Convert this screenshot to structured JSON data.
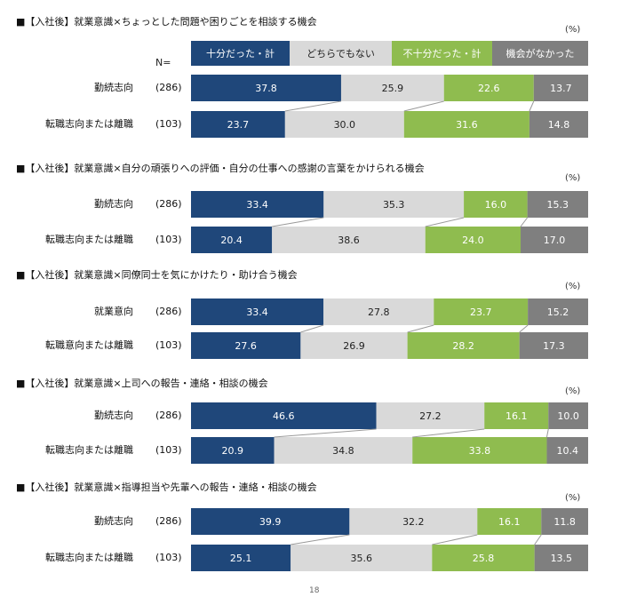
{
  "percent_unit": "(%)",
  "n_header": "N=",
  "page_number": "18",
  "legend": [
    {
      "label": "十分だった・計",
      "color": "#1f477a",
      "text_color": "#ffffff"
    },
    {
      "label": "どちらでもない",
      "color": "#d9d9d9",
      "text_color": "#222222"
    },
    {
      "label": "不十分だった・計",
      "color": "#8fbc4f",
      "text_color": "#ffffff"
    },
    {
      "label": "機会がなかった",
      "color": "#7f7f7f",
      "text_color": "#ffffff"
    }
  ],
  "chart_data": [
    {
      "type": "bar",
      "stacked": true,
      "orientation": "horizontal",
      "title": "■【入社後】就業意識×ちょっとした問題や困りごとを相談する機会",
      "categories": [
        "勤続志向",
        "転職志向または離職"
      ],
      "n": [
        "(286)",
        "(103)"
      ],
      "series": [
        {
          "name": "十分だった・計",
          "values": [
            37.8,
            23.7
          ]
        },
        {
          "name": "どちらでもない",
          "values": [
            25.9,
            30.0
          ]
        },
        {
          "name": "不十分だった・計",
          "values": [
            22.6,
            31.6
          ]
        },
        {
          "name": "機会がなかった",
          "values": [
            13.7,
            14.8
          ]
        }
      ],
      "value_labels": [
        [
          "37.8",
          "25.9",
          "22.6",
          "13.7"
        ],
        [
          "23.7",
          "30.0",
          "31.6",
          "14.8"
        ]
      ]
    },
    {
      "type": "bar",
      "stacked": true,
      "orientation": "horizontal",
      "title": "■【入社後】就業意識×自分の頑張りへの評価・自分の仕事への感謝の言葉をかけられる機会",
      "categories": [
        "勤続志向",
        "転職志向または離職"
      ],
      "n": [
        "(286)",
        "(103)"
      ],
      "series": [
        {
          "name": "十分だった・計",
          "values": [
            33.4,
            20.4
          ]
        },
        {
          "name": "どちらでもない",
          "values": [
            35.3,
            38.6
          ]
        },
        {
          "name": "不十分だった・計",
          "values": [
            16.0,
            24.0
          ]
        },
        {
          "name": "機会がなかった",
          "values": [
            15.3,
            17.0
          ]
        }
      ],
      "value_labels": [
        [
          "33.4",
          "35.3",
          "16.0",
          "15.3"
        ],
        [
          "20.4",
          "38.6",
          "24.0",
          "17.0"
        ]
      ]
    },
    {
      "type": "bar",
      "stacked": true,
      "orientation": "horizontal",
      "title": "■【入社後】就業意識×同僚同士を気にかけたり・助け合う機会",
      "categories": [
        "就業意向",
        "転職意向または離職"
      ],
      "n": [
        "(286)",
        "(103)"
      ],
      "series": [
        {
          "name": "十分だった・計",
          "values": [
            33.4,
            27.6
          ]
        },
        {
          "name": "どちらでもない",
          "values": [
            27.8,
            26.9
          ]
        },
        {
          "name": "不十分だった・計",
          "values": [
            23.7,
            28.2
          ]
        },
        {
          "name": "機会がなかった",
          "values": [
            15.2,
            17.3
          ]
        }
      ],
      "value_labels": [
        [
          "33.4",
          "27.8",
          "23.7",
          "15.2"
        ],
        [
          "27.6",
          "26.9",
          "28.2",
          "17.3"
        ]
      ]
    },
    {
      "type": "bar",
      "stacked": true,
      "orientation": "horizontal",
      "title": "■【入社後】就業意識×上司への報告・連絡・相談の機会",
      "categories": [
        "勤続志向",
        "転職志向または離職"
      ],
      "n": [
        "(286)",
        "(103)"
      ],
      "series": [
        {
          "name": "十分だった・計",
          "values": [
            46.6,
            20.9
          ]
        },
        {
          "name": "どちらでもない",
          "values": [
            27.2,
            34.8
          ]
        },
        {
          "name": "不十分だった・計",
          "values": [
            16.1,
            33.8
          ]
        },
        {
          "name": "機会がなかった",
          "values": [
            10.0,
            10.4
          ]
        }
      ],
      "value_labels": [
        [
          "46.6",
          "27.2",
          "16.1",
          "10.0"
        ],
        [
          "20.9",
          "34.8",
          "33.8",
          "10.4"
        ]
      ]
    },
    {
      "type": "bar",
      "stacked": true,
      "orientation": "horizontal",
      "title": "■【入社後】就業意識×指導担当や先輩への報告・連絡・相談の機会",
      "categories": [
        "勤続志向",
        "転職志向または離職"
      ],
      "n": [
        "(286)",
        "(103)"
      ],
      "series": [
        {
          "name": "十分だった・計",
          "values": [
            39.9,
            25.1
          ]
        },
        {
          "name": "どちらでもない",
          "values": [
            32.2,
            35.6
          ]
        },
        {
          "name": "不十分だった・計",
          "values": [
            16.1,
            25.8
          ]
        },
        {
          "name": "機会がなかった",
          "values": [
            11.8,
            13.5
          ]
        }
      ],
      "value_labels": [
        [
          "39.9",
          "32.2",
          "16.1",
          "11.8"
        ],
        [
          "25.1",
          "35.6",
          "25.8",
          "13.5"
        ]
      ]
    }
  ]
}
